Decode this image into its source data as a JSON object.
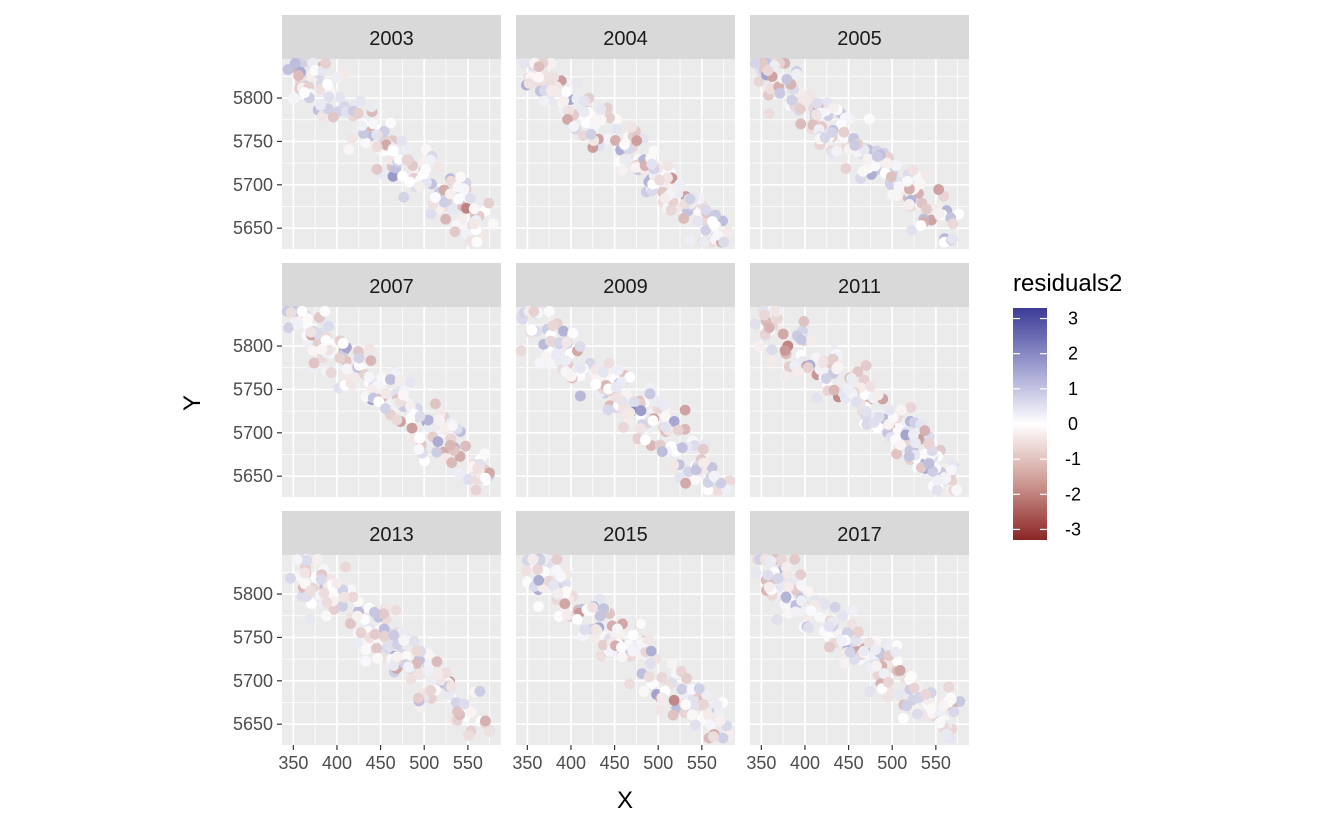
{
  "chart_data": {
    "type": "scatter",
    "facet_by": "year",
    "panels": [
      "2003",
      "2004",
      "2005",
      "2007",
      "2009",
      "2011",
      "2013",
      "2015",
      "2017"
    ],
    "xlabel": "X",
    "ylabel": "Y",
    "xlim": [
      337,
      588
    ],
    "ylim": [
      5626,
      5845
    ],
    "x_ticks": [
      350,
      400,
      450,
      500,
      550
    ],
    "x_tick_labels": [
      "350",
      "400",
      "450",
      "500",
      "550"
    ],
    "y_ticks": [
      5650,
      5700,
      5750,
      5800
    ],
    "y_tick_labels": [
      "5650",
      "5700",
      "5750",
      "5800"
    ],
    "grid": true,
    "point_size_note": "points sampled along diagonal band from upper-left to lower-right",
    "color_scale": {
      "title": "residuals2",
      "type": "diverging",
      "low": "#8b2525",
      "mid": "#ffffff",
      "high": "#3b3b96",
      "limits": [
        -3.3,
        3.3
      ],
      "ticks": [
        3,
        2,
        1,
        0,
        -1,
        -2,
        -3
      ],
      "tick_labels": [
        "3",
        "2",
        "1",
        "0",
        "-1",
        "-2",
        "-3"
      ],
      "legend_position": "right"
    },
    "colors": {
      "panel_bg": "#ebebeb",
      "grid_major": "#ffffff",
      "strip_bg": "#d9d9d9"
    }
  }
}
